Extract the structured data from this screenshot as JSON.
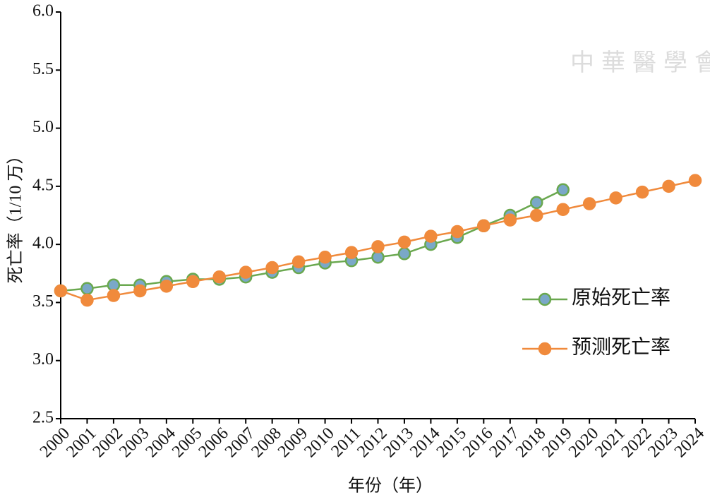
{
  "chart_data": {
    "type": "line",
    "x_label": "年份（年）",
    "y_label": "死亡率（1/10 万）",
    "watermark": "中華醫學會",
    "categories": [
      "2000",
      "2001",
      "2002",
      "2003",
      "2004",
      "2005",
      "2006",
      "2007",
      "2008",
      "2009",
      "2010",
      "2011",
      "2012",
      "2013",
      "2014",
      "2015",
      "2016",
      "2017",
      "2018",
      "2019",
      "2020",
      "2021",
      "2022",
      "2023",
      "2024"
    ],
    "series": [
      {
        "name": "原始死亡率",
        "color": "#6aa84f",
        "marker_color": "#7aa8c8",
        "values": [
          3.6,
          3.62,
          3.65,
          3.65,
          3.68,
          3.7,
          3.7,
          3.72,
          3.76,
          3.8,
          3.84,
          3.86,
          3.89,
          3.92,
          4.0,
          4.06,
          4.16,
          4.25,
          4.36,
          4.47,
          null,
          null,
          null,
          null,
          null
        ]
      },
      {
        "name": "预测死亡率",
        "color": "#f08a3c",
        "marker_color": "#f08a3c",
        "values": [
          3.6,
          3.52,
          3.56,
          3.6,
          3.64,
          3.68,
          3.72,
          3.76,
          3.8,
          3.85,
          3.89,
          3.93,
          3.98,
          4.02,
          4.07,
          4.11,
          4.16,
          4.21,
          4.25,
          4.3,
          4.35,
          4.4,
          4.45,
          4.5,
          4.55
        ]
      }
    ],
    "ylim": [
      2.5,
      6.0
    ],
    "yticks": [
      {
        "value": 2.5,
        "label": "2.5"
      },
      {
        "value": 3.0,
        "label": "3.0"
      },
      {
        "value": 3.5,
        "label": "3.5"
      },
      {
        "value": 4.0,
        "label": "4.0"
      },
      {
        "value": 4.5,
        "label": "4.5"
      },
      {
        "value": 5.0,
        "label": "5.0"
      },
      {
        "value": 5.5,
        "label": "5.5"
      },
      {
        "value": 6.0,
        "label": "6.0"
      }
    ],
    "legend": "right",
    "grid": false
  }
}
